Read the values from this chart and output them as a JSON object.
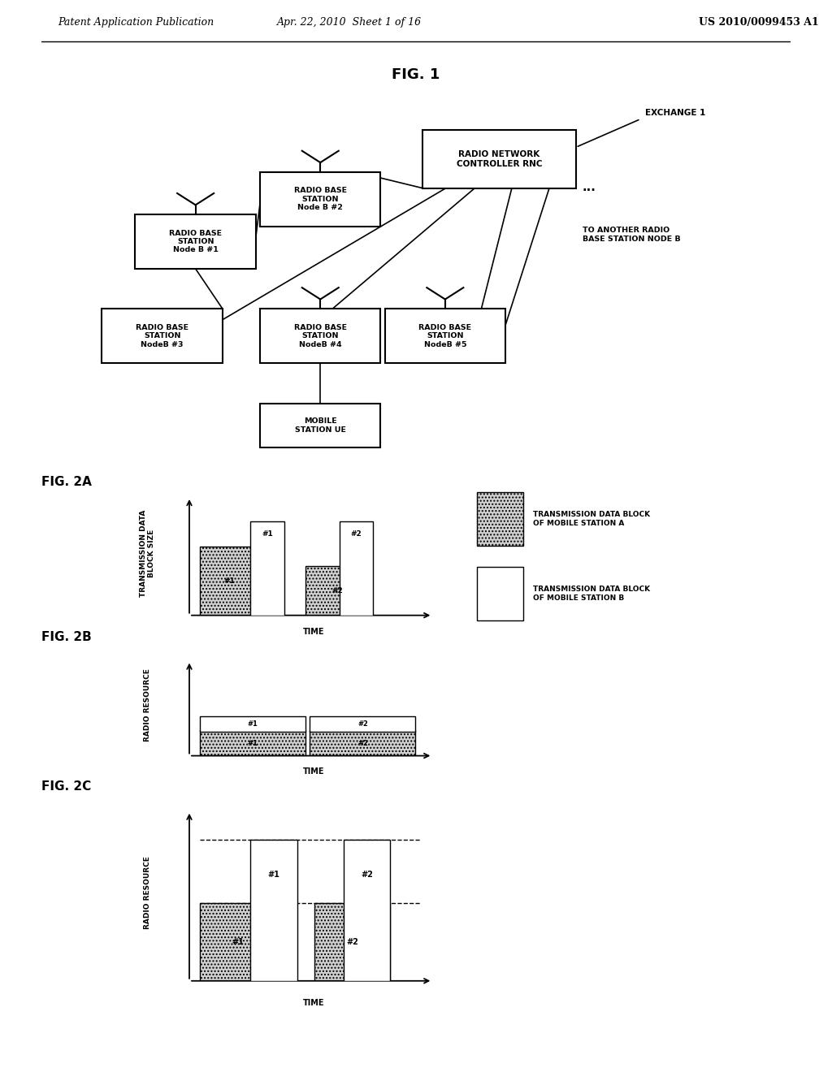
{
  "header_left": "Patent Application Publication",
  "header_mid": "Apr. 22, 2010  Sheet 1 of 16",
  "header_right": "US 2010/0099453 A1",
  "fig1_title": "FIG. 1",
  "fig2a_title": "FIG. 2A",
  "fig2b_title": "FIG. 2B",
  "fig2c_title": "FIG. 2C",
  "background_color": "#ffffff",
  "exchange_label": "EXCHANGE 1",
  "another_label": "TO ANOTHER RADIO\nBASE STATION NODE B",
  "dots_label": "...",
  "legend_a": "TRANSMISSION DATA BLOCK\nOF MOBILE STATION A",
  "legend_b": "TRANSMISSION DATA BLOCK\nOF MOBILE STATION B",
  "ylabel_2a": "TRANSMISSION DATA\nBLOCK SIZE",
  "xlabel_2a": "TIME",
  "ylabel_2b": "RADIO RESOURCE",
  "xlabel_2b": "TIME",
  "ylabel_2c": "RADIO RESOURCE",
  "xlabel_2c": "TIME"
}
